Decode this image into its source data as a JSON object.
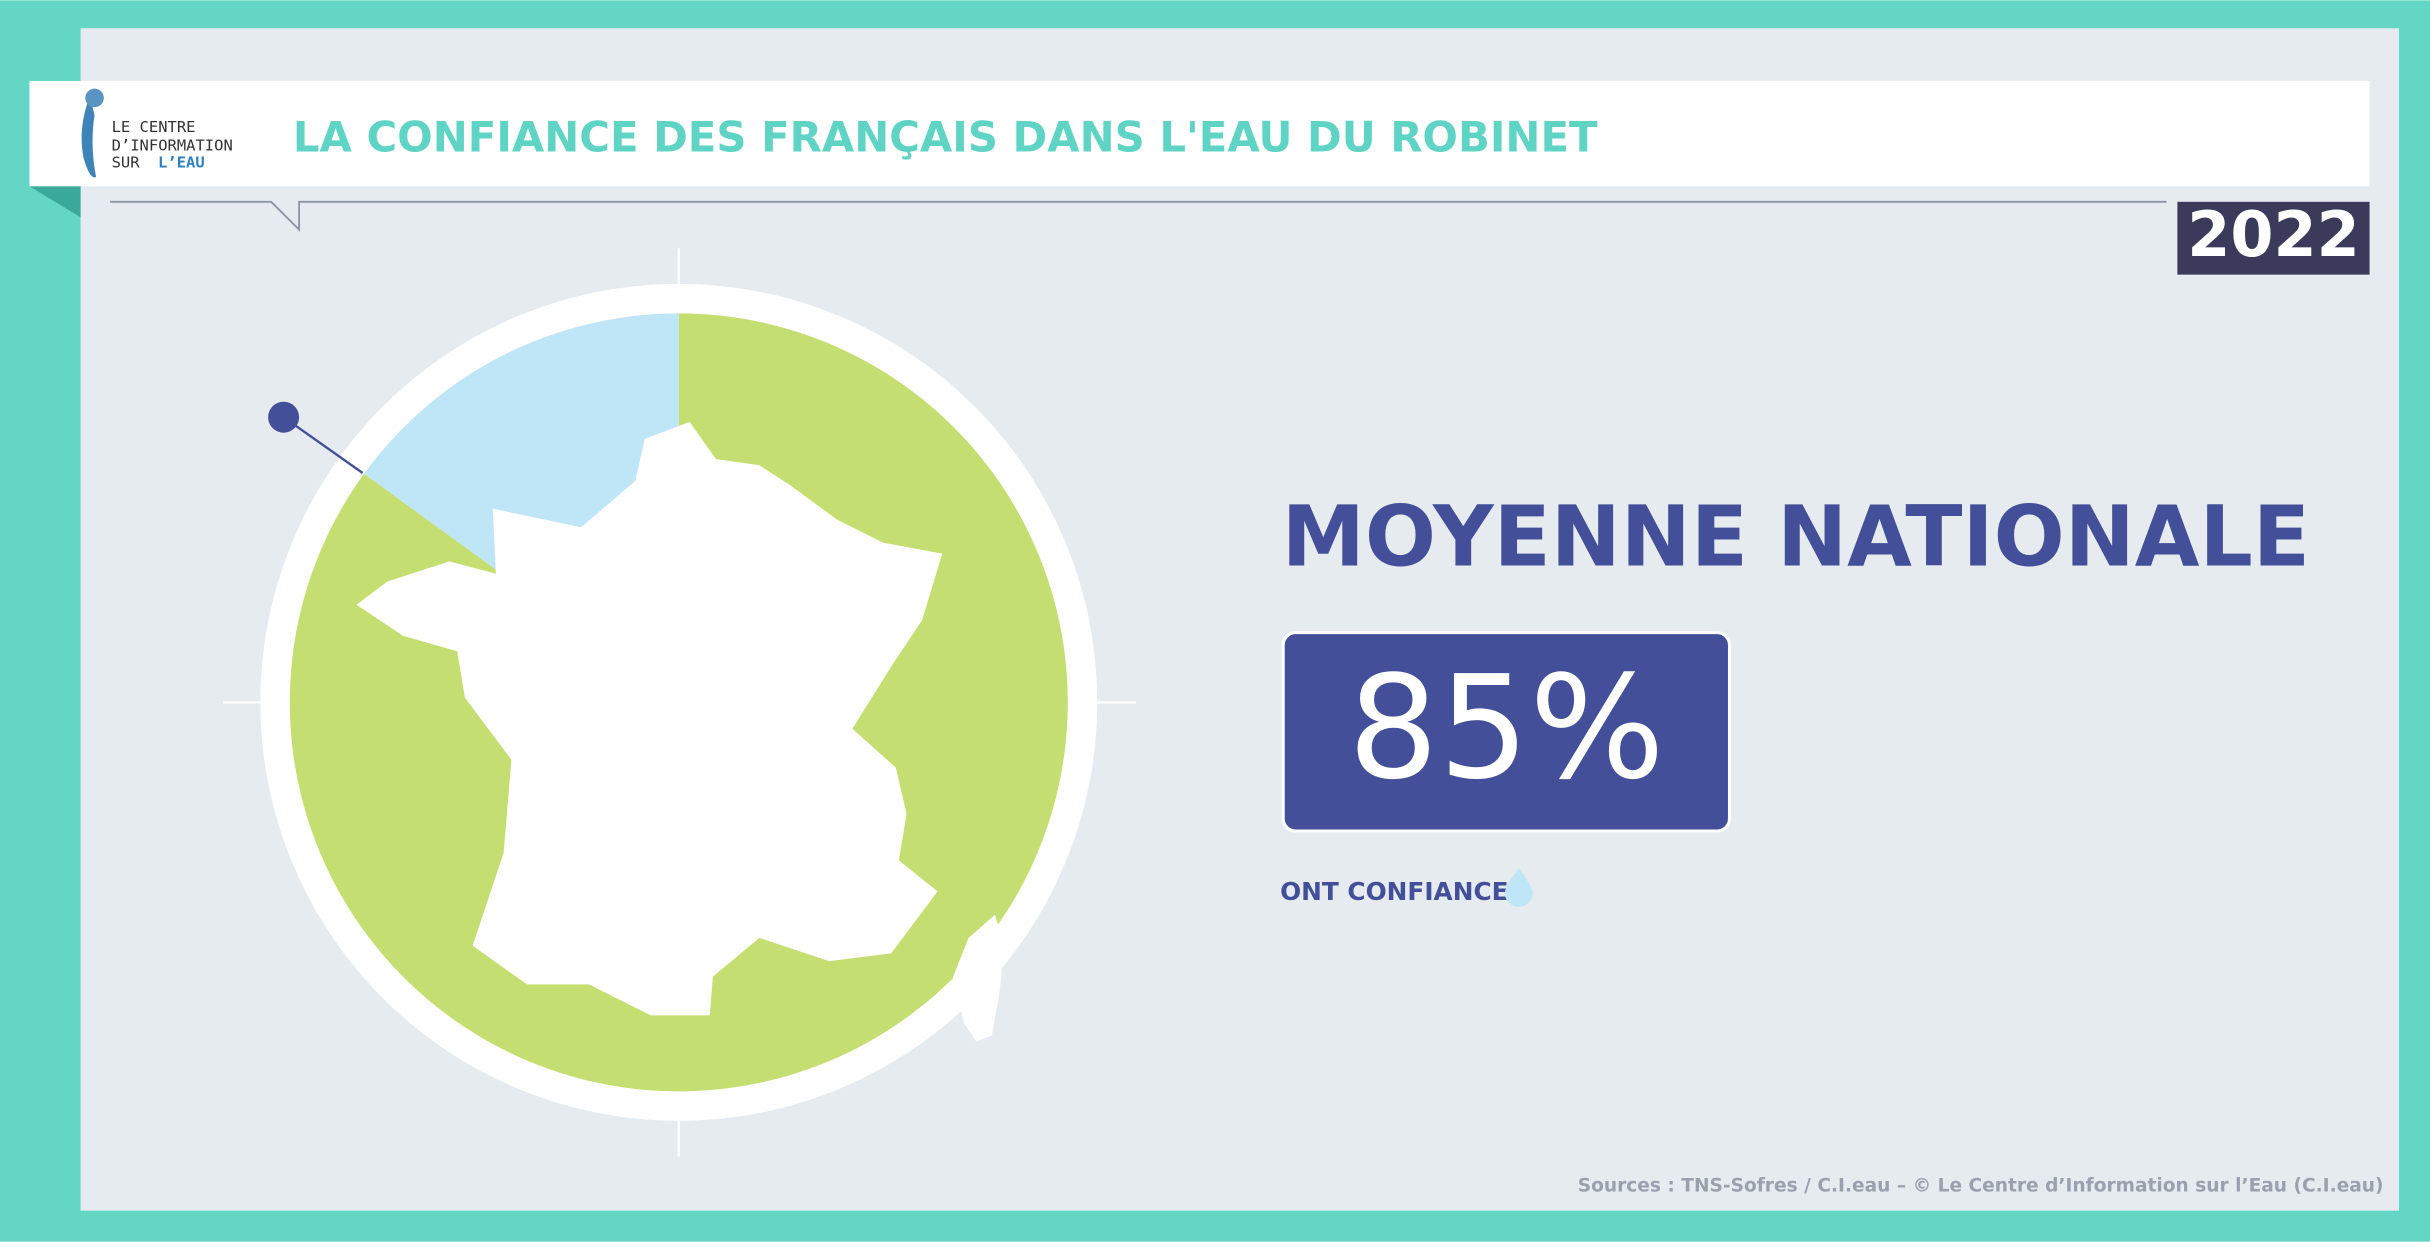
{
  "header": {
    "title": "LA CONFIANCE DES FRANÇAIS DANS L'EAU DU ROBINET",
    "logo": [
      "LE CENTRE",
      "D’INFORMATION",
      "SUR",
      "L’EAU"
    ],
    "year": "2022"
  },
  "chart_data": {
    "type": "pie",
    "title": "MOYENNE NATIONALE",
    "categories": [
      "ONT CONFIANCE",
      null
    ],
    "values": [
      85,
      15
    ],
    "value_labels": [
      "85%",
      null
    ],
    "colors": [
      "#c5de72",
      "#bfe6f7"
    ]
  },
  "source": "Sources : TNS-Sofres / C.I.eau – © Le Centre d’Information sur l’Eau (C.I.eau)"
}
